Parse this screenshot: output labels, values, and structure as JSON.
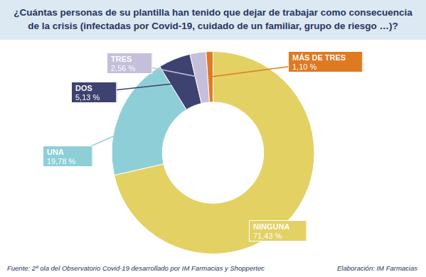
{
  "chart_data": {
    "type": "doughnut",
    "title": "¿Cuántas personas de su plantilla han tenido que dejar de trabajar como consecuencia de la crisis (infectadas por Covid-19, cuidado de un familiar, grupo de riesgo …)?",
    "categories": [
      "NINGUNA",
      "UNA",
      "DOS",
      "TRES",
      "MÁS DE TRES"
    ],
    "values": [
      71.43,
      19.78,
      5.13,
      2.56,
      1.1
    ],
    "value_labels": [
      "71,43 %",
      "19,78 %",
      "5,13 %",
      "2,56 %",
      "1,10 %"
    ],
    "colors": [
      "#e3d163",
      "#8ecfd7",
      "#3d4270",
      "#c5bfdc",
      "#e07a22"
    ],
    "data_labels": true,
    "annotations": [
      "Fuente: 2º ola del Observatorio Covid-19 desarrollado por IM Farmacias y Shoppertec",
      "Elaboración: IM Farmacias"
    ]
  }
}
